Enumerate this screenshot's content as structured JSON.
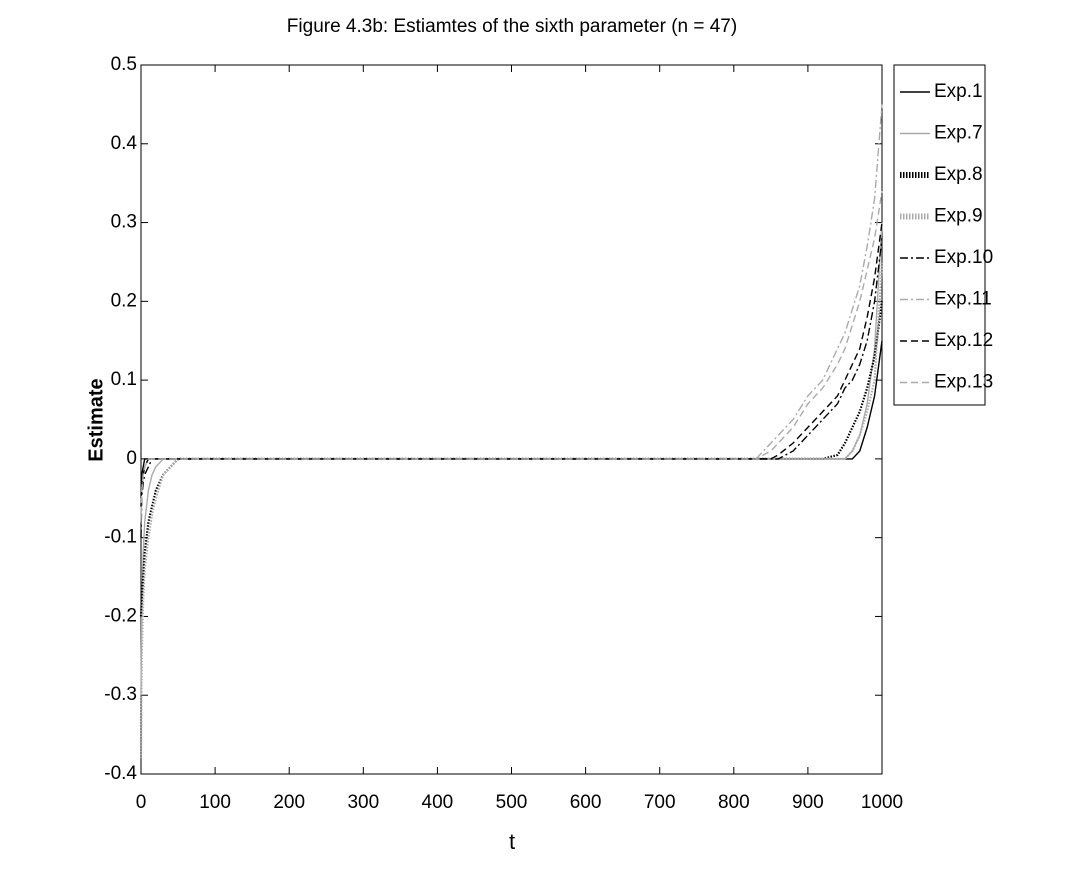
{
  "chart_data": {
    "type": "line",
    "title": "Figure 4.3b: Estiamtes of the sixth parameter (n = 47)",
    "x_label": "t",
    "y_label": "Estimate",
    "x": [
      0,
      1,
      3,
      5,
      10,
      15,
      20,
      30,
      40,
      50,
      60,
      80,
      100,
      200,
      400,
      600,
      800,
      830,
      850,
      860,
      880,
      900,
      920,
      940,
      950,
      960,
      970,
      980,
      990,
      1000
    ],
    "xlim": [
      0,
      1000
    ],
    "xticks": [
      0,
      100,
      200,
      300,
      400,
      500,
      600,
      700,
      800,
      900,
      1000
    ],
    "ylim": [
      -0.4,
      0.5
    ],
    "yticks": [
      -0.4,
      -0.3,
      -0.2,
      -0.1,
      0,
      0.1,
      0.2,
      0.3,
      0.4,
      0.5
    ],
    "grid": false,
    "legend": "outside-right",
    "series": [
      {
        "name": "Exp.1",
        "color": "#000000",
        "dash": "solid",
        "values": [
          -0.05,
          -0.02,
          -0.01,
          0,
          0,
          0,
          0,
          0,
          0,
          0,
          0,
          0,
          0,
          0,
          0,
          0,
          0,
          0,
          0,
          0,
          0,
          0,
          0,
          0,
          0,
          0,
          0.01,
          0.04,
          0.08,
          0.15
        ]
      },
      {
        "name": "Exp.7",
        "color": "#aaaaaa",
        "dash": "solid",
        "values": [
          -0.3,
          -0.2,
          -0.12,
          -0.08,
          -0.04,
          -0.02,
          -0.01,
          0,
          0,
          0,
          0,
          0,
          0,
          0,
          0,
          0,
          0,
          0,
          0,
          0,
          0,
          0,
          0,
          0,
          0,
          0.01,
          0.03,
          0.07,
          0.14,
          0.3
        ]
      },
      {
        "name": "Exp.8",
        "color": "#000000",
        "dash": "dotted",
        "values": [
          -0.2,
          -0.18,
          -0.15,
          -0.12,
          -0.08,
          -0.06,
          -0.04,
          -0.02,
          -0.01,
          0,
          0,
          0,
          0,
          0,
          0,
          0,
          0,
          0,
          0,
          0,
          0,
          0,
          0,
          0.005,
          0.02,
          0.04,
          0.06,
          0.09,
          0.13,
          0.2
        ]
      },
      {
        "name": "Exp.9",
        "color": "#aaaaaa",
        "dash": "dotted",
        "values": [
          -0.38,
          -0.25,
          -0.18,
          -0.14,
          -0.1,
          -0.07,
          -0.05,
          -0.02,
          -0.01,
          0,
          0,
          0,
          0,
          0,
          0,
          0,
          0,
          0,
          0,
          0,
          0,
          0,
          0,
          0,
          0,
          0.01,
          0.03,
          0.06,
          0.1,
          0.25
        ]
      },
      {
        "name": "Exp.10",
        "color": "#000000",
        "dash": "dashdot",
        "values": [
          -0.1,
          -0.05,
          -0.03,
          -0.02,
          -0.01,
          0,
          0,
          0,
          0,
          0,
          0,
          0,
          0,
          0,
          0,
          0,
          0,
          0,
          0,
          0,
          0.01,
          0.03,
          0.05,
          0.07,
          0.09,
          0.1,
          0.12,
          0.15,
          0.2,
          0.28
        ]
      },
      {
        "name": "Exp.11",
        "color": "#aaaaaa",
        "dash": "dashdot",
        "values": [
          -0.08,
          -0.04,
          -0.02,
          -0.01,
          0,
          0,
          0,
          0,
          0,
          0,
          0,
          0,
          0,
          0,
          0,
          0,
          0,
          0,
          0.02,
          0.03,
          0.05,
          0.08,
          0.1,
          0.14,
          0.16,
          0.19,
          0.22,
          0.27,
          0.33,
          0.45
        ]
      },
      {
        "name": "Exp.12",
        "color": "#000000",
        "dash": "dashed",
        "values": [
          -0.06,
          -0.03,
          -0.02,
          -0.01,
          0,
          0,
          0,
          0,
          0,
          0,
          0,
          0,
          0,
          0,
          0,
          0,
          0,
          0,
          0,
          0.005,
          0.02,
          0.04,
          0.06,
          0.08,
          0.1,
          0.12,
          0.14,
          0.18,
          0.23,
          0.3
        ]
      },
      {
        "name": "Exp.13",
        "color": "#aaaaaa",
        "dash": "dashed",
        "values": [
          -0.07,
          -0.04,
          -0.02,
          -0.01,
          0,
          0,
          0,
          0,
          0,
          0,
          0,
          0,
          0,
          0,
          0,
          0,
          0,
          0,
          0.01,
          0.02,
          0.04,
          0.07,
          0.09,
          0.12,
          0.14,
          0.17,
          0.2,
          0.24,
          0.28,
          0.34
        ]
      }
    ]
  }
}
